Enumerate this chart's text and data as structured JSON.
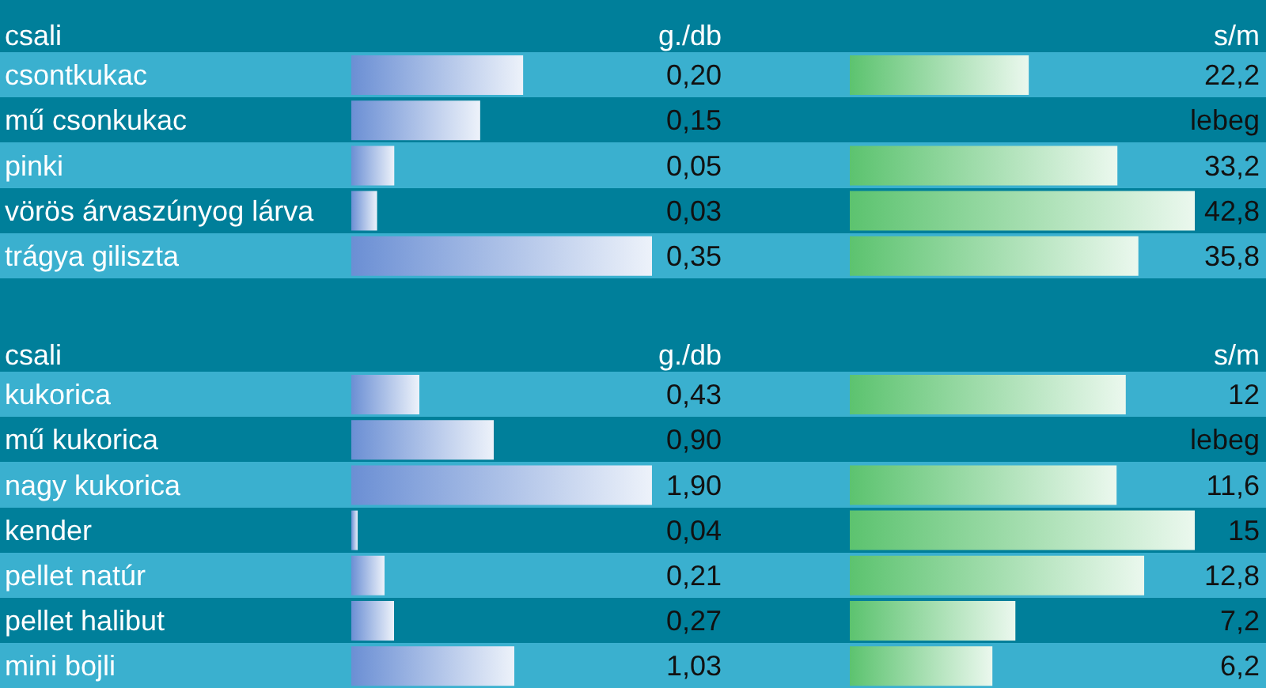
{
  "chart_data": [
    {
      "type": "bar",
      "orientation": "horizontal",
      "ylabel": "csali",
      "xlabel": "g./db",
      "tick_labels": "y",
      "categories": [
        "csontkukac",
        "mű csonkukac",
        "pinki",
        "vörös árvaszúnyog lárva",
        "trágya giliszta"
      ],
      "values": [
        0.2,
        0.15,
        0.05,
        0.03,
        0.35
      ],
      "value_labels": [
        "0,20",
        "0,15",
        "0,05",
        "0,03",
        "0,35"
      ],
      "color": "#6b8fd4"
    },
    {
      "type": "bar",
      "orientation": "horizontal",
      "xlabel": "s/m",
      "tick_labels": false,
      "categories": [
        null,
        null,
        null,
        null,
        null
      ],
      "values": [
        22.2,
        null,
        33.2,
        42.8,
        35.8
      ],
      "value_labels": [
        "22,2",
        "lebeg",
        "33,2",
        "42,8",
        "35,8"
      ],
      "color": "#5cc36f"
    },
    {
      "type": "bar",
      "orientation": "horizontal",
      "ylabel": "csali",
      "xlabel": "g./db",
      "tick_labels": "y",
      "categories": [
        "kukorica",
        "mű kukorica",
        "nagy kukorica",
        "kender",
        "pellet natúr",
        "pellet halibut",
        "mini bojli"
      ],
      "values": [
        0.43,
        0.9,
        1.9,
        0.04,
        0.21,
        0.27,
        1.03
      ],
      "value_labels": [
        "0,43",
        "0,90",
        "1,90",
        "0,04",
        "0,21",
        "0,27",
        "1,03"
      ],
      "color": "#6b8fd4"
    },
    {
      "type": "bar",
      "orientation": "horizontal",
      "xlabel": "s/m",
      "tick_labels": false,
      "categories": [
        null,
        null,
        null,
        null,
        null,
        null,
        null
      ],
      "values": [
        12,
        null,
        11.6,
        15,
        12.8,
        7.2,
        6.2
      ],
      "value_labels": [
        "12",
        "lebeg",
        "11,6",
        "15",
        "12,8",
        "7,2",
        "6,2"
      ],
      "color": "#5cc36f"
    }
  ]
}
